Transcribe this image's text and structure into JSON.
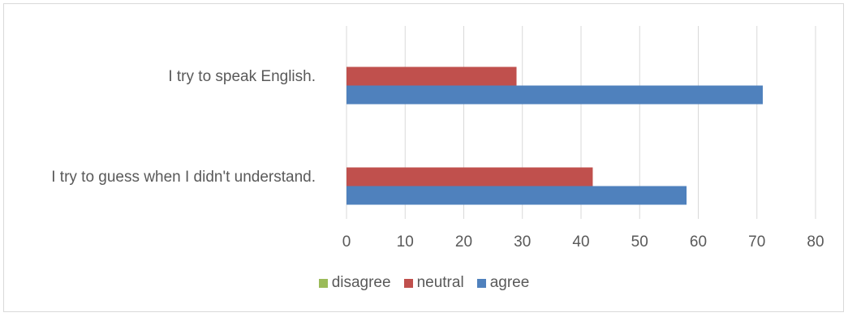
{
  "chart_data": {
    "type": "bar",
    "orientation": "horizontal",
    "categories": [
      "I try to speak English.",
      "I try to guess when I didn't understand."
    ],
    "series": [
      {
        "name": "disagree",
        "color": "#9BBB59",
        "values": [
          0,
          0
        ]
      },
      {
        "name": "neutral",
        "color": "#C0504D",
        "values": [
          29,
          42
        ]
      },
      {
        "name": "agree",
        "color": "#4F81BD",
        "values": [
          71,
          58
        ]
      }
    ],
    "xlim": [
      0,
      80
    ],
    "xticks": [
      0,
      10,
      20,
      30,
      40,
      50,
      60,
      70,
      80
    ],
    "grid": "vertical",
    "legend_position": "bottom"
  }
}
